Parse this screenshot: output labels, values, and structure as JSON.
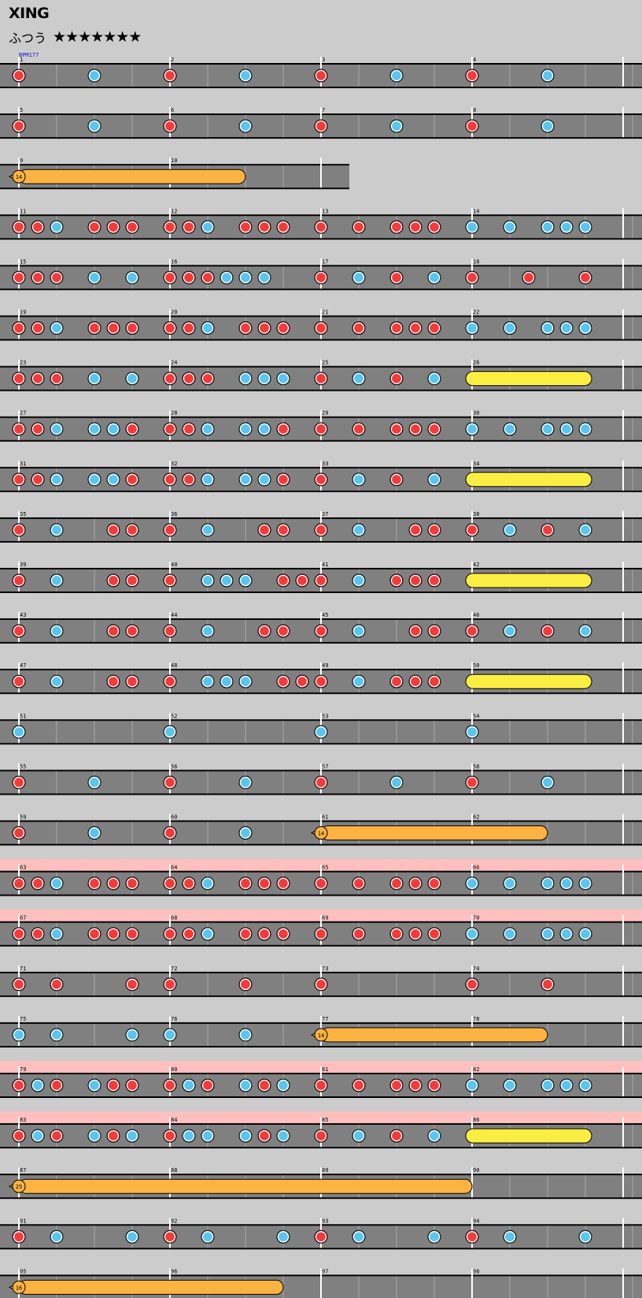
{
  "song_title": "XING",
  "difficulty_label": "ふつう",
  "stars": "★★★★★★★",
  "bpm_label": "BPM177",
  "colors": {
    "background": "#cccccc",
    "lane": "#808080",
    "lane_edge": "#000000",
    "gogo_band": "#ffbfbf",
    "don": "#f43b3b",
    "ka": "#5ac5ee",
    "drumroll": "#fcb341",
    "balloon_roll": "#fbee43",
    "bpm_text": "#1414cc"
  },
  "chart_data": {
    "type": "taiko_note_chart",
    "measures_per_row": 4,
    "divisions_per_measure": 8,
    "rows": [
      {
        "measures": [
          1,
          2,
          3,
          4
        ],
        "notes": "d...k...d...k...d...k...d...k...",
        "rolls": []
      },
      {
        "measures": [
          5,
          6,
          7,
          8
        ],
        "notes": "d...k...d...k...d...k...d...k...",
        "rolls": []
      },
      {
        "measures": [
          9,
          10
        ],
        "notes": "................",
        "rolls": [
          {
            "type": "drumroll",
            "start": 0,
            "end": 12,
            "label": "14"
          }
        ]
      },
      {
        "measures": [
          11,
          12,
          13,
          14
        ],
        "notes": "ddk.ddd.ddk.ddd.d.d.ddd.k.k.kkk.",
        "rolls": []
      },
      {
        "measures": [
          15,
          16,
          17,
          18
        ],
        "notes": "ddd.k.k.dddkkk..d.k.d.k.d..d..d.",
        "rolls": []
      },
      {
        "measures": [
          19,
          20,
          21,
          22
        ],
        "notes": "ddk.ddd.ddk.ddd.d.d.ddd.k.k.kkk.",
        "rolls": []
      },
      {
        "measures": [
          23,
          24,
          25,
          26
        ],
        "notes": "ddd.k.k.ddd.kkk.d.k.d.k.........",
        "rolls": [
          {
            "type": "balloon",
            "start": 24,
            "end": 30
          }
        ]
      },
      {
        "measures": [
          27,
          28,
          29,
          30
        ],
        "notes": "ddk.kkd.ddk.kkd.d.d.ddd.k.k.kkk.",
        "rolls": []
      },
      {
        "measures": [
          31,
          32,
          33,
          34
        ],
        "notes": "ddk.kkd.ddk.kkd.d.k.d.k.........",
        "rolls": [
          {
            "type": "balloon",
            "start": 24,
            "end": 30
          }
        ]
      },
      {
        "measures": [
          35,
          36,
          37,
          38
        ],
        "notes": "d.k..dd.d.k..dd.d.k..dd.d.k.d.k.",
        "rolls": []
      },
      {
        "measures": [
          39,
          40,
          41,
          42
        ],
        "notes": "d.k..dd.d.kkk.ddd.k.ddd.........",
        "rolls": [
          {
            "type": "balloon",
            "start": 24,
            "end": 30
          }
        ]
      },
      {
        "measures": [
          43,
          44,
          45,
          46
        ],
        "notes": "d.k..dd.d.k..dd.d.k..dd.d.k.d.k.",
        "rolls": []
      },
      {
        "measures": [
          47,
          48,
          49,
          50
        ],
        "notes": "d.k..dd.d.kkk.ddd.k.ddd.........",
        "rolls": [
          {
            "type": "balloon",
            "start": 24,
            "end": 30
          }
        ]
      },
      {
        "measures": [
          51,
          52,
          53,
          54
        ],
        "notes": "k.......k.......k.......k.......",
        "rolls": []
      },
      {
        "measures": [
          55,
          56,
          57,
          58
        ],
        "notes": "d...k...d...k...d...k...d...k...",
        "rolls": []
      },
      {
        "measures": [
          59,
          60,
          61,
          62
        ],
        "notes": "d...k...d...k...................",
        "rolls": [
          {
            "type": "drumroll",
            "start": 16,
            "end": 28,
            "label": "14"
          }
        ]
      },
      {
        "measures": [
          63,
          64,
          65,
          66
        ],
        "gogo": true,
        "notes": "ddk.ddd.ddk.ddd.d.d.ddd.k.k.kkk.",
        "rolls": []
      },
      {
        "measures": [
          67,
          68,
          69,
          70
        ],
        "gogo": true,
        "notes": "ddk.ddd.ddk.ddd.d.d.ddd.k.k.kkk.",
        "rolls": []
      },
      {
        "measures": [
          71,
          72,
          73,
          74
        ],
        "notes": "d.d...d.d...d...d.......d...d...",
        "rolls": []
      },
      {
        "measures": [
          75,
          76,
          77,
          78
        ],
        "notes": "k.k...k.k...k...................",
        "rolls": [
          {
            "type": "drumroll",
            "start": 16,
            "end": 28,
            "label": "14"
          }
        ]
      },
      {
        "measures": [
          79,
          80,
          81,
          82
        ],
        "gogo": true,
        "notes": "dkd.kdd.dkd.kdk.d.d.ddd.k.k.kkk.",
        "rolls": []
      },
      {
        "measures": [
          83,
          84,
          85,
          86
        ],
        "gogo": true,
        "notes": "dkd.kdk.dkk.kdk.d.k.d.k.........",
        "rolls": [
          {
            "type": "balloon",
            "start": 24,
            "end": 30
          }
        ]
      },
      {
        "measures": [
          87,
          88,
          89,
          90
        ],
        "notes": "................................",
        "rolls": [
          {
            "type": "drumroll",
            "start": 0,
            "end": 24,
            "label": "25"
          }
        ]
      },
      {
        "measures": [
          91,
          92,
          93,
          94
        ],
        "notes": "d.k...k.d.k...k.d.k...k.d.k...k.",
        "rolls": []
      },
      {
        "measures": [
          95,
          96,
          97,
          98
        ],
        "notes": "................................",
        "rolls": [
          {
            "type": "drumroll",
            "start": 0,
            "end": 14,
            "label": "16"
          }
        ]
      }
    ]
  }
}
